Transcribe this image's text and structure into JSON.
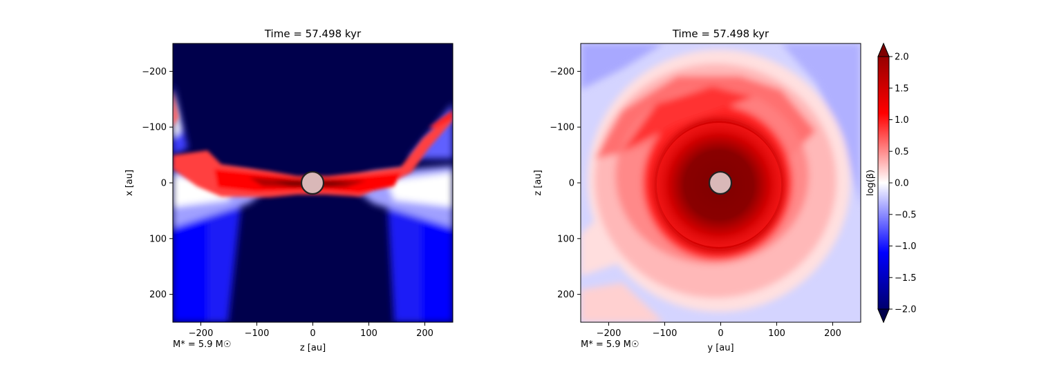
{
  "chart_data": [
    {
      "type": "heatmap",
      "title": "Time = 57.498 kyr",
      "xlabel": "z [au]",
      "ylabel": "x [au]",
      "xlim": [
        -250,
        250
      ],
      "ylim": [
        -250,
        250
      ],
      "xticks": [
        -200,
        -100,
        0,
        100,
        200
      ],
      "yticks": [
        -200,
        -100,
        0,
        100,
        200
      ],
      "annotation": "M$_*$ = 5.9 M$_\\odot$",
      "annotation_text": "M* = 5.9 M☉",
      "view": "edge-on",
      "sink_radius_au": 20,
      "sink_color": "#d9b8b8",
      "grid": false
    },
    {
      "type": "heatmap",
      "title": "Time = 57.498 kyr",
      "xlabel": "y [au]",
      "ylabel": "z [au]",
      "xlim": [
        -250,
        250
      ],
      "ylim": [
        -250,
        250
      ],
      "xticks": [
        -200,
        -100,
        0,
        100,
        200
      ],
      "yticks": [
        -200,
        -100,
        0,
        100,
        200
      ],
      "annotation_text": "M* = 5.9 M☉",
      "view": "face-on",
      "sink_radius_au": 20,
      "sink_color": "#d9b8b8",
      "grid": false
    }
  ],
  "colorbar": {
    "label": "log(β)",
    "range": [
      -2.0,
      2.0
    ],
    "ticks": [
      "2.0",
      "1.5",
      "1.0",
      "0.5",
      "0.0",
      "−0.5",
      "−1.0",
      "−1.5",
      "−2.0"
    ],
    "tick_values": [
      2.0,
      1.5,
      1.0,
      0.5,
      0.0,
      -0.5,
      -1.0,
      -1.5,
      -2.0
    ],
    "colormap": "seismic",
    "colormap_stops": [
      "#00004c",
      "#0000ff",
      "#ffffff",
      "#ff0000",
      "#7f0000"
    ],
    "extend": "both"
  },
  "tick_labels": {
    "x": [
      "−200",
      "−100",
      "0",
      "100",
      "200"
    ],
    "y": [
      "200",
      "100",
      "0",
      "−100",
      "−200"
    ]
  }
}
